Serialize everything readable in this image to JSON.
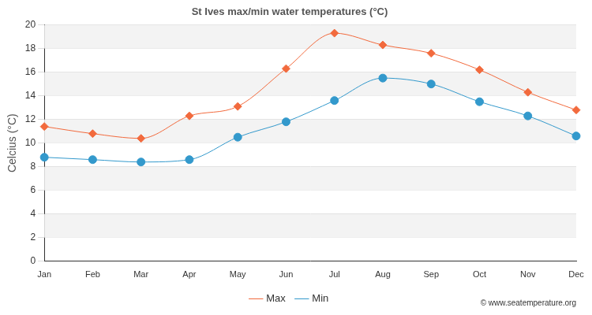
{
  "chart_data": {
    "type": "line",
    "title": "St Ives max/min water temperatures (°C)",
    "y_label": "Celcius (°C)",
    "annotation": "© www.seatemperature.org",
    "categories": [
      "Jan",
      "Feb",
      "Mar",
      "Apr",
      "May",
      "Jun",
      "Jul",
      "Aug",
      "Sep",
      "Oct",
      "Nov",
      "Dec"
    ],
    "series": [
      {
        "name": "Max",
        "color": "#f26a3d",
        "marker": "diamond",
        "line_style": "solid",
        "values": [
          11.4,
          10.8,
          10.4,
          12.3,
          13.1,
          16.3,
          19.3,
          18.3,
          17.6,
          16.2,
          14.3,
          12.8
        ]
      },
      {
        "name": "Min",
        "color": "#3399cc",
        "marker": "circle",
        "line_style": "solid",
        "values": [
          8.8,
          8.6,
          8.4,
          8.6,
          10.5,
          11.8,
          13.6,
          15.5,
          15.0,
          13.5,
          12.3,
          10.6
        ]
      }
    ],
    "ylim": [
      0,
      20
    ],
    "yticks": [
      0,
      2,
      4,
      6,
      8,
      10,
      12,
      14,
      16,
      18,
      20
    ],
    "grid": true,
    "legend": "bottom"
  }
}
